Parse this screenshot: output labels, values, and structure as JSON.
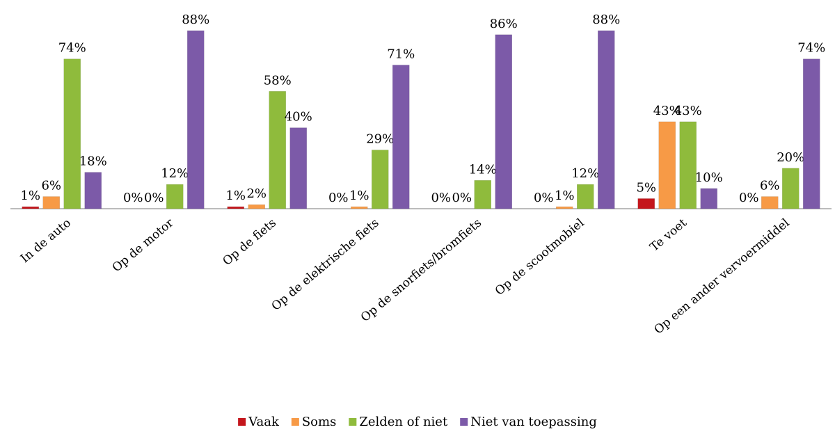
{
  "chart_data": {
    "type": "bar",
    "categories": [
      "In de auto",
      "Op de motor",
      "Op de fiets",
      "Op de elektrische fiets",
      "Op de snorfiets/bromfiets",
      "Op de scootmobiel",
      "Te voet",
      "Op een ander vervoermiddel"
    ],
    "series": [
      {
        "name": "Vaak",
        "color": "#c4161c",
        "values": [
          1,
          0,
          1,
          0,
          0,
          0,
          5,
          0
        ],
        "value_labels": [
          "1%",
          "0%",
          "1%",
          "0%",
          "0%",
          "0%",
          "5%",
          "0%"
        ]
      },
      {
        "name": "Soms",
        "color": "#f79a46",
        "values": [
          6,
          0,
          2,
          1,
          0,
          1,
          43,
          6
        ],
        "value_labels": [
          "6%",
          "0%",
          "2%",
          "1%",
          "0%",
          "1%",
          "43%",
          "6%"
        ]
      },
      {
        "name": "Zelden of niet",
        "color": "#8fbb3c",
        "values": [
          74,
          12,
          58,
          29,
          14,
          12,
          43,
          20
        ],
        "value_labels": [
          "74%",
          "12%",
          "58%",
          "29%",
          "14%",
          "12%",
          "43%",
          "20%"
        ]
      },
      {
        "name": "Niet van toepassing",
        "color": "#7c5aa8",
        "values": [
          18,
          88,
          40,
          71,
          86,
          88,
          10,
          74
        ],
        "value_labels": [
          "18%",
          "88%",
          "40%",
          "71%",
          "86%",
          "88%",
          "10%",
          "74%"
        ]
      }
    ],
    "legend": "bottom"
  }
}
